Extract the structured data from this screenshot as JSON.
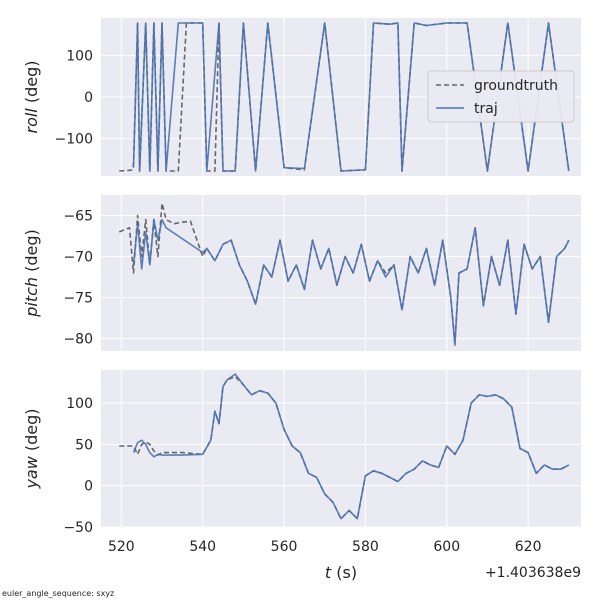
{
  "footer_note": "euler_angle_sequence: sxyz",
  "colors": {
    "background": "#eaeaf2",
    "grid": "#ffffff",
    "groundtruth": "#666666",
    "traj": "#4c72b0"
  },
  "chart_data": [
    {
      "type": "line",
      "ylabel_italic": "roll",
      "ylabel_unit": " (deg)",
      "ylim": [
        -190,
        190
      ],
      "yticks": [
        -100,
        0,
        100
      ],
      "xlim": [
        515,
        633
      ],
      "xticks": [
        520,
        540,
        560,
        580,
        600,
        620
      ],
      "show_xticklabels": false,
      "legend": {
        "position": "right",
        "entries": [
          "groundtruth",
          "traj"
        ]
      },
      "series": [
        {
          "name": "groundtruth",
          "style": "dashed",
          "x": [
            519.5,
            522.5,
            523,
            524,
            524.5,
            526,
            527,
            528,
            529,
            530,
            531,
            534,
            536,
            540,
            541,
            543,
            544,
            545,
            548,
            550,
            553,
            556,
            560,
            565,
            570,
            574,
            580,
            582,
            586,
            588,
            589,
            592,
            595,
            600,
            605,
            610,
            615,
            620,
            625,
            630
          ],
          "y": [
            -178,
            -176,
            -163,
            178,
            -178,
            178,
            -178,
            178,
            -178,
            178,
            -178,
            -178,
            178,
            178,
            -178,
            -178,
            178,
            -178,
            -178,
            178,
            -178,
            178,
            -170,
            -175,
            178,
            -178,
            -175,
            178,
            175,
            178,
            -178,
            178,
            172,
            178,
            178,
            -178,
            178,
            -178,
            178,
            -178
          ]
        },
        {
          "name": "traj",
          "style": "solid",
          "x": [
            523,
            524,
            524.5,
            526,
            527,
            528,
            529,
            530,
            531,
            534,
            536,
            540,
            541,
            544,
            545,
            548,
            550,
            553,
            556,
            560,
            565,
            570,
            574,
            580,
            582,
            586,
            588,
            589,
            592,
            595,
            600,
            605,
            610,
            615,
            620,
            625,
            630
          ],
          "y": [
            -170,
            178,
            -178,
            178,
            -178,
            178,
            -178,
            178,
            -178,
            178,
            178,
            178,
            -178,
            178,
            -178,
            -178,
            178,
            -178,
            178,
            -170,
            -172,
            178,
            -178,
            -175,
            178,
            175,
            178,
            -178,
            178,
            172,
            178,
            178,
            -178,
            178,
            -178,
            178,
            -178
          ]
        }
      ]
    },
    {
      "type": "line",
      "ylabel_italic": "pitch",
      "ylabel_unit": " (deg)",
      "ylim": [
        -81.5,
        -62.5
      ],
      "yticks": [
        -80,
        -75,
        -70,
        -65
      ],
      "xlim": [
        515,
        633
      ],
      "xticks": [
        520,
        540,
        560,
        580,
        600,
        620
      ],
      "show_xticklabels": false,
      "series": [
        {
          "name": "groundtruth",
          "style": "dashed",
          "x": [
            519.5,
            522,
            523,
            524,
            525,
            526,
            527,
            528,
            529,
            530,
            531,
            533,
            535,
            537,
            540,
            541,
            543,
            545,
            547,
            549,
            551,
            553,
            555,
            557,
            559,
            561,
            563,
            565,
            567,
            569,
            571,
            573,
            575,
            577,
            579,
            581,
            583,
            585,
            587,
            589,
            591,
            593,
            595,
            597,
            599,
            601,
            602,
            603,
            605,
            607,
            609,
            611,
            613,
            615,
            617,
            619,
            621,
            623,
            625,
            627,
            629,
            630
          ],
          "y": [
            -67,
            -66.5,
            -72,
            -65,
            -70,
            -65.5,
            -71,
            -65.5,
            -70,
            -63.5,
            -65.5,
            -66,
            -65.8,
            -65.7,
            -70,
            -69,
            -70.5,
            -68.5,
            -68,
            -71,
            -73,
            -75.8,
            -71,
            -72.5,
            -68,
            -73,
            -71,
            -74,
            -68,
            -71.5,
            -69,
            -73.5,
            -70,
            -72,
            -68.5,
            -73,
            -70.5,
            -72,
            -71,
            -76.5,
            -70,
            -72,
            -69,
            -73.5,
            -68,
            -75,
            -80.5,
            -72,
            -71.5,
            -66.5,
            -76,
            -70,
            -73.5,
            -68,
            -77,
            -68.5,
            -71.5,
            -70,
            -78,
            -70,
            -69,
            -68
          ]
        },
        {
          "name": "traj",
          "style": "solid",
          "x": [
            523,
            524,
            525,
            526,
            527,
            528,
            529,
            530,
            531,
            540,
            541,
            543,
            545,
            547,
            549,
            551,
            553,
            555,
            557,
            559,
            561,
            563,
            565,
            567,
            569,
            571,
            573,
            575,
            577,
            579,
            581,
            583,
            585,
            587,
            589,
            591,
            593,
            595,
            597,
            599,
            601,
            602,
            603,
            605,
            607,
            609,
            611,
            613,
            615,
            617,
            619,
            621,
            623,
            625,
            627,
            629,
            630
          ],
          "y": [
            -71,
            -66,
            -71.5,
            -67,
            -71,
            -65.5,
            -68,
            -65.5,
            -66.5,
            -69.5,
            -69,
            -70.5,
            -68.5,
            -68,
            -71,
            -73,
            -75.8,
            -71,
            -72.5,
            -68,
            -73,
            -71,
            -74,
            -68,
            -71.5,
            -69,
            -73.5,
            -70,
            -72,
            -68.5,
            -73,
            -70.5,
            -72.5,
            -71,
            -76.5,
            -70,
            -72,
            -69,
            -73.5,
            -68,
            -75,
            -80.8,
            -72,
            -71.5,
            -66.5,
            -76,
            -70,
            -73.5,
            -68,
            -77,
            -68.5,
            -71.5,
            -70,
            -78,
            -70,
            -69,
            -68
          ]
        }
      ]
    },
    {
      "type": "line",
      "ylabel_italic": "yaw",
      "ylabel_unit": " (deg)",
      "ylim": [
        -50,
        140
      ],
      "yticks": [
        -50,
        0,
        50,
        100
      ],
      "xlim": [
        515,
        633
      ],
      "xticks": [
        520,
        540,
        560,
        580,
        600,
        620
      ],
      "xticklabels": [
        "520",
        "540",
        "560",
        "580",
        "600",
        "620"
      ],
      "show_xticklabels": true,
      "xlabel_italic": "t",
      "xlabel_unit": " (s)",
      "x_offset_text": "+1.403638e9",
      "series": [
        {
          "name": "groundtruth",
          "style": "dashed",
          "x": [
            519.5,
            523,
            524,
            525,
            526,
            527,
            528,
            529,
            530,
            532,
            535,
            540,
            542,
            543,
            544,
            545,
            546,
            548,
            550,
            552,
            554,
            556,
            558,
            560,
            562,
            564,
            566,
            568,
            570,
            572,
            574,
            576,
            578,
            580,
            582,
            584,
            586,
            588,
            590,
            592,
            594,
            596,
            598,
            600,
            602,
            604,
            606,
            608,
            610,
            612,
            614,
            616,
            618,
            620,
            622,
            624,
            626,
            628,
            630
          ],
          "y": [
            48,
            48,
            38,
            50,
            53,
            50,
            42,
            37,
            40,
            40,
            40,
            38,
            55,
            90,
            75,
            120,
            128,
            132,
            122,
            110,
            115,
            112,
            100,
            68,
            48,
            40,
            15,
            10,
            -10,
            -20,
            -40,
            -30,
            -40,
            12,
            18,
            15,
            10,
            5,
            15,
            20,
            30,
            25,
            22,
            48,
            38,
            55,
            100,
            110,
            108,
            110,
            105,
            95,
            45,
            40,
            15,
            25,
            20,
            20,
            25
          ]
        },
        {
          "name": "traj",
          "style": "solid",
          "x": [
            523,
            524,
            525,
            526,
            527,
            528,
            529,
            530,
            532,
            535,
            540,
            542,
            543,
            544,
            545,
            546,
            548,
            550,
            552,
            554,
            556,
            558,
            560,
            562,
            564,
            566,
            568,
            570,
            572,
            574,
            576,
            578,
            580,
            582,
            584,
            586,
            588,
            590,
            592,
            594,
            596,
            598,
            600,
            602,
            604,
            606,
            608,
            610,
            612,
            614,
            616,
            618,
            620,
            622,
            624,
            626,
            628,
            630
          ],
          "y": [
            40,
            52,
            55,
            50,
            40,
            35,
            38,
            37,
            37,
            37,
            38,
            55,
            90,
            75,
            120,
            128,
            135,
            122,
            110,
            115,
            112,
            100,
            68,
            48,
            40,
            15,
            10,
            -10,
            -20,
            -40,
            -30,
            -40,
            12,
            18,
            15,
            10,
            5,
            15,
            20,
            30,
            25,
            22,
            48,
            38,
            55,
            100,
            110,
            108,
            110,
            105,
            95,
            45,
            40,
            15,
            25,
            20,
            20,
            25
          ]
        }
      ]
    }
  ]
}
